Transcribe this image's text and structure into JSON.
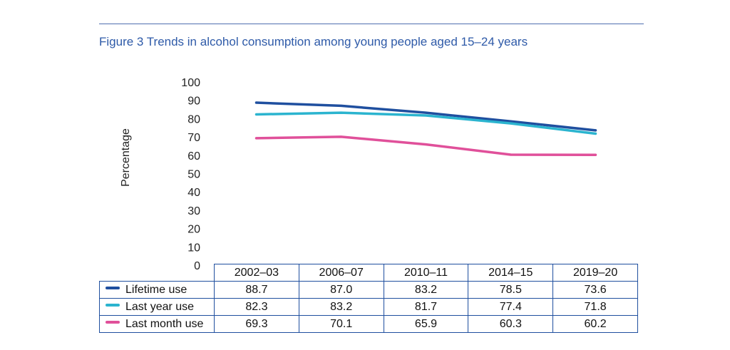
{
  "figure": {
    "title": "Figure 3 Trends in alcohol consumption among young people aged 15–24 years"
  },
  "chart_data": {
    "type": "line",
    "title": "Figure 3 Trends in alcohol consumption among young people aged 15–24 years",
    "ylabel": "Percentage",
    "xlabel": "",
    "ylim": [
      0,
      100
    ],
    "yticks": [
      "100",
      "90",
      "80",
      "70",
      "60",
      "50",
      "40",
      "30",
      "20",
      "10",
      "0"
    ],
    "categories": [
      "2002–03",
      "2006–07",
      "2010–11",
      "2014–15",
      "2019–20"
    ],
    "grid": false,
    "legend": "data table below chart",
    "series": [
      {
        "name": "Lifetime use",
        "color": "#1f4f9f",
        "values": [
          88.7,
          87.0,
          83.2,
          78.5,
          73.6
        ],
        "labels": [
          "88.7",
          "87.0",
          "83.2",
          "78.5",
          "73.6"
        ]
      },
      {
        "name": "Last year use",
        "color": "#2bb4cf",
        "values": [
          82.3,
          83.2,
          81.7,
          77.4,
          71.8
        ],
        "labels": [
          "82.3",
          "83.2",
          "81.7",
          "77.4",
          "71.8"
        ]
      },
      {
        "name": "Last month use",
        "color": "#e0509a",
        "values": [
          69.3,
          70.1,
          65.9,
          60.3,
          60.2
        ],
        "labels": [
          "69.3",
          "70.1",
          "65.9",
          "60.3",
          "60.2"
        ]
      }
    ]
  }
}
